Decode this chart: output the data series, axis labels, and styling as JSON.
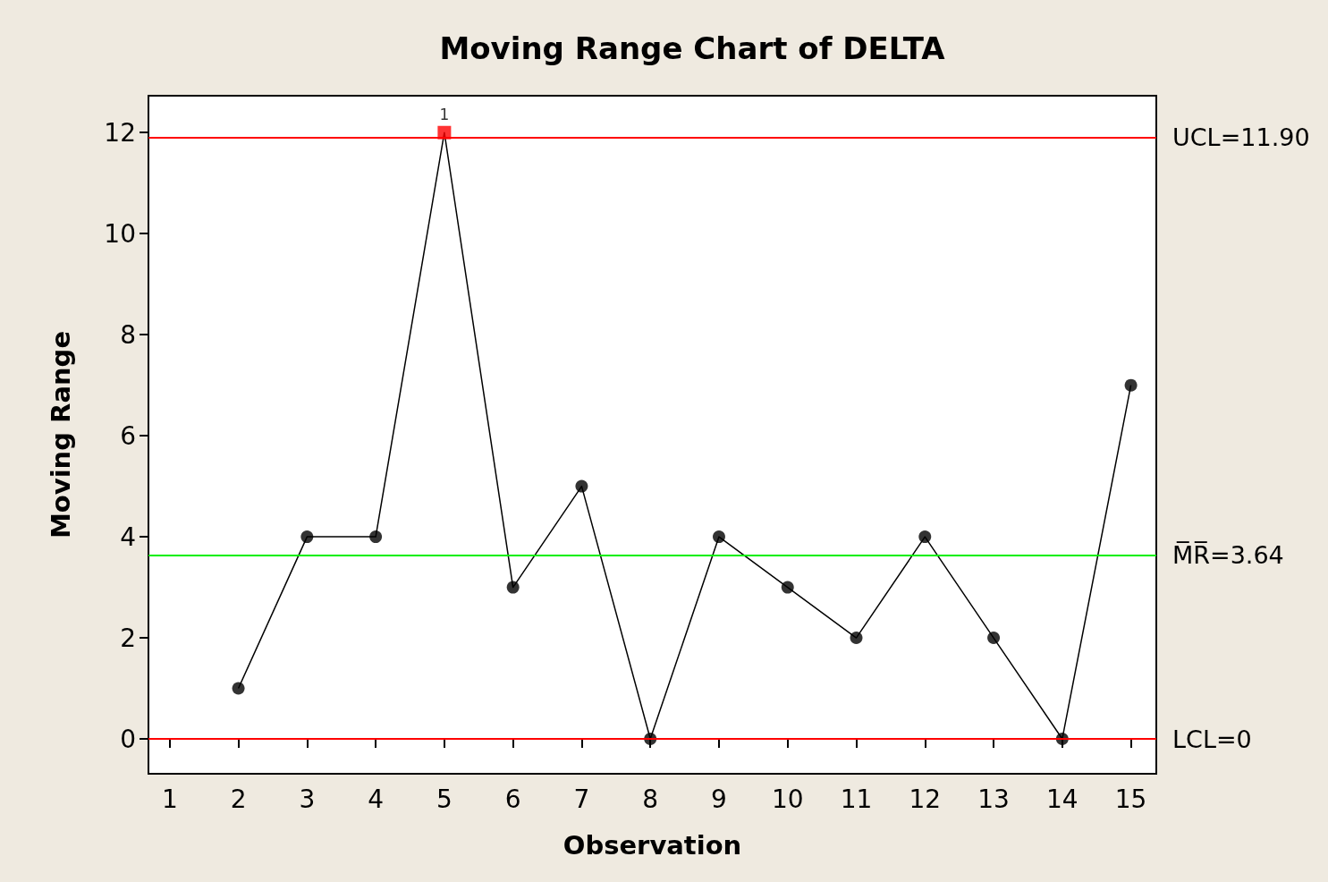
{
  "chart_data": {
    "type": "line",
    "title": "Moving Range Chart of DELTA",
    "xlabel": "Observation",
    "ylabel": "Moving Range",
    "x": [
      2,
      3,
      4,
      5,
      6,
      7,
      8,
      9,
      10,
      11,
      12,
      13,
      14,
      15
    ],
    "xlim": [
      0.69,
      15.37
    ],
    "xticks": [
      1,
      2,
      3,
      4,
      5,
      6,
      7,
      8,
      9,
      10,
      11,
      12,
      13,
      14,
      15
    ],
    "ylim": [
      -0.69,
      12.73
    ],
    "yticks": [
      0,
      2,
      4,
      6,
      8,
      10,
      12
    ],
    "series": [
      {
        "color": "#000000",
        "marker": "none",
        "values": [
          1,
          4,
          4,
          12,
          3,
          5,
          0,
          4,
          3,
          2,
          4,
          2,
          0,
          7
        ]
      },
      {
        "type": "scatter",
        "color": "#000000",
        "marker": "circle",
        "values": [
          1,
          4,
          4,
          null,
          3,
          5,
          0,
          4,
          3,
          2,
          4,
          2,
          0,
          7
        ]
      },
      {
        "type": "scatter",
        "color": "#ff0000",
        "marker": "square",
        "x": [
          5
        ],
        "values": [
          12
        ]
      }
    ],
    "ref_lines": [
      {
        "axis": "y",
        "value": 11.9,
        "label": "UCL=11.90",
        "color": "#ff0000",
        "line_style": "solid"
      },
      {
        "axis": "y",
        "value": 3.64,
        "label": "M̅R̅=3.64",
        "color": "#00ee00",
        "line_style": "solid"
      },
      {
        "axis": "y",
        "value": 0,
        "label": "LCL=0",
        "color": "#ff0000",
        "line_style": "solid"
      }
    ],
    "annotations": [
      {
        "text": "1",
        "x": 5,
        "y": 12
      }
    ],
    "grid": false
  }
}
